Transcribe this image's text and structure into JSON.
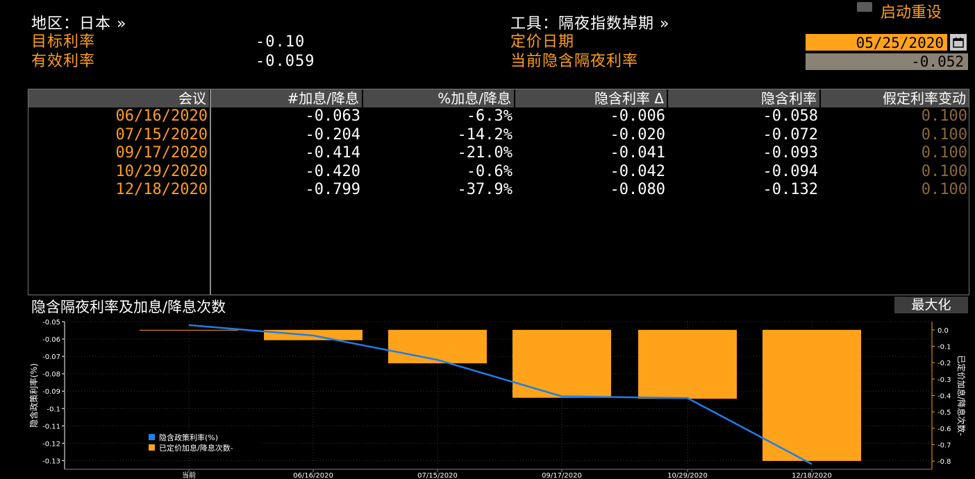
{
  "header": {
    "region_label": "地区：日本 »",
    "instrument_label": "工具：隔夜指数掉期 »",
    "target_rate_label": "目标利率",
    "target_rate_value": "-0.10",
    "effective_rate_label": "有效利率",
    "effective_rate_value": "-0.059",
    "pricing_date_label": "定价日期",
    "pricing_date_value": "05/25/2020",
    "implied_overnight_label": "当前隐含隔夜利率",
    "implied_overnight_value": "-0.052",
    "restart_label": "启动重设",
    "calendar_icon": "calendar-icon"
  },
  "table": {
    "columns": [
      "会议",
      "#加息/降息",
      "%加息/降息",
      "隐含利率 Δ",
      "隐含利率",
      "假定利率变动"
    ],
    "rows": [
      {
        "date": "06/16/2020",
        "hikes": "-0.063",
        "pct": "-6.3%",
        "delta": "-0.006",
        "rate": "-0.058",
        "assumed": "0.100"
      },
      {
        "date": "07/15/2020",
        "hikes": "-0.204",
        "pct": "-14.2%",
        "delta": "-0.020",
        "rate": "-0.072",
        "assumed": "0.100"
      },
      {
        "date": "09/17/2020",
        "hikes": "-0.414",
        "pct": "-21.0%",
        "delta": "-0.041",
        "rate": "-0.093",
        "assumed": "0.100"
      },
      {
        "date": "10/29/2020",
        "hikes": "-0.420",
        "pct": "-0.6%",
        "delta": "-0.042",
        "rate": "-0.094",
        "assumed": "0.100"
      },
      {
        "date": "12/18/2020",
        "hikes": "-0.799",
        "pct": "-37.9%",
        "delta": "-0.080",
        "rate": "-0.132",
        "assumed": "0.100"
      }
    ]
  },
  "chart_section": {
    "title": "隐含隔夜利率及加息/降息次数",
    "maximize_label": "最大化"
  },
  "chart_data": {
    "type": "bar",
    "categories": [
      "当前",
      "06/16/2020",
      "07/15/2020",
      "09/17/2020",
      "10/29/2020",
      "12/18/2020"
    ],
    "series": [
      {
        "name": "已定价加息/降息次数-",
        "kind": "bar",
        "axis": "right",
        "color": "#ffa31a",
        "values": [
          0,
          -0.063,
          -0.204,
          -0.414,
          -0.42,
          -0.799
        ]
      },
      {
        "name": "隐含政策利率(%)",
        "kind": "line",
        "axis": "left",
        "color": "#1e7ee8",
        "values": [
          -0.052,
          -0.058,
          -0.072,
          -0.093,
          -0.094,
          -0.132
        ]
      }
    ],
    "ylabel": "隐含政策利率(%)",
    "ylabel_right": "已定价加息/降息次数-",
    "ylim": [
      -0.135,
      -0.05
    ],
    "ylim_right": [
      -0.85,
      0.05
    ],
    "yticks": [
      "-0.05",
      "-0.06",
      "-0.07",
      "-0.08",
      "-0.09",
      "-0.1",
      "-0.11",
      "-0.12",
      "-0.13"
    ],
    "yticks_right": [
      "0.0",
      "-0.1",
      "-0.2",
      "-0.3",
      "-0.4",
      "-0.5",
      "-0.6",
      "-0.7",
      "-0.8"
    ],
    "grid": true,
    "legend_position": "bottom-left"
  }
}
